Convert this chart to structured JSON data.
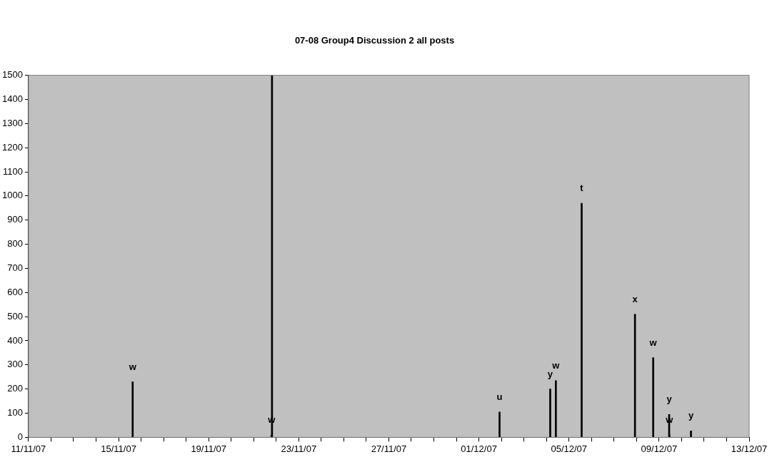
{
  "chart_data": {
    "type": "bar",
    "title": "07-08 Group4 Discussion 2 all posts",
    "x": [
      "--11-15T15:00",
      "--11-21T19:00",
      "--11-21T19:30",
      "--12-01T22:00",
      "--12-04T04:00",
      "--12-04T10:00",
      "--12-05T13:30",
      "--12-07T22:20",
      "--12-08T17:45",
      "--12-09T10:45",
      "--12-09T11:00",
      "--12-10T10:00"
    ],
    "values": [
      230,
      10,
      1500,
      105,
      200,
      235,
      970,
      510,
      330,
      95,
      10,
      27
    ],
    "value_labels": [
      "w",
      "w",
      null,
      "u",
      "y",
      "w",
      "t",
      "x",
      "w",
      "y",
      "w",
      "y"
    ],
    "color": "#000000",
    "xlim": [
      "--11-11",
      "--12-13"
    ],
    "xticks": [
      {
        "value": "--11-11",
        "label": "11/11/07"
      },
      {
        "value": "--11-12",
        "label": null
      },
      {
        "value": "--11-13",
        "label": null
      },
      {
        "value": "--11-14",
        "label": null
      },
      {
        "value": "--11-15",
        "label": "15/11/07"
      },
      {
        "value": "--11-16",
        "label": null
      },
      {
        "value": "--11-17",
        "label": null
      },
      {
        "value": "--11-18",
        "label": null
      },
      {
        "value": "--11-19",
        "label": "19/11/07"
      },
      {
        "value": "--11-20",
        "label": null
      },
      {
        "value": "--11-21",
        "label": null
      },
      {
        "value": "--11-22",
        "label": null
      },
      {
        "value": "--11-23",
        "label": "23/11/07"
      },
      {
        "value": "--11-24",
        "label": null
      },
      {
        "value": "--11-25",
        "label": null
      },
      {
        "value": "--11-26",
        "label": null
      },
      {
        "value": "--11-27",
        "label": "27/11/07"
      },
      {
        "value": "--11-28",
        "label": null
      },
      {
        "value": "--11-29",
        "label": null
      },
      {
        "value": "--11-30",
        "label": null
      },
      {
        "value": "--12-01",
        "label": "01/12/07"
      },
      {
        "value": "--12-02",
        "label": null
      },
      {
        "value": "--12-03",
        "label": null
      },
      {
        "value": "--12-04",
        "label": null
      },
      {
        "value": "--12-05",
        "label": "05/12/07"
      },
      {
        "value": "--12-06",
        "label": null
      },
      {
        "value": "--12-07",
        "label": null
      },
      {
        "value": "--12-08",
        "label": null
      },
      {
        "value": "--12-09",
        "label": "09/12/07"
      },
      {
        "value": "--12-10",
        "label": null
      },
      {
        "value": "--12-11",
        "label": null
      },
      {
        "value": "--12-12",
        "label": null
      },
      {
        "value": "--12-13",
        "label": "13/12/07"
      }
    ],
    "ylim": [
      0,
      1500
    ],
    "yticks": [
      0,
      100,
      200,
      300,
      400,
      500,
      600,
      700,
      800,
      900,
      1000,
      1100,
      1200,
      1300,
      1400,
      1500
    ],
    "grid": false,
    "legend": false
  }
}
